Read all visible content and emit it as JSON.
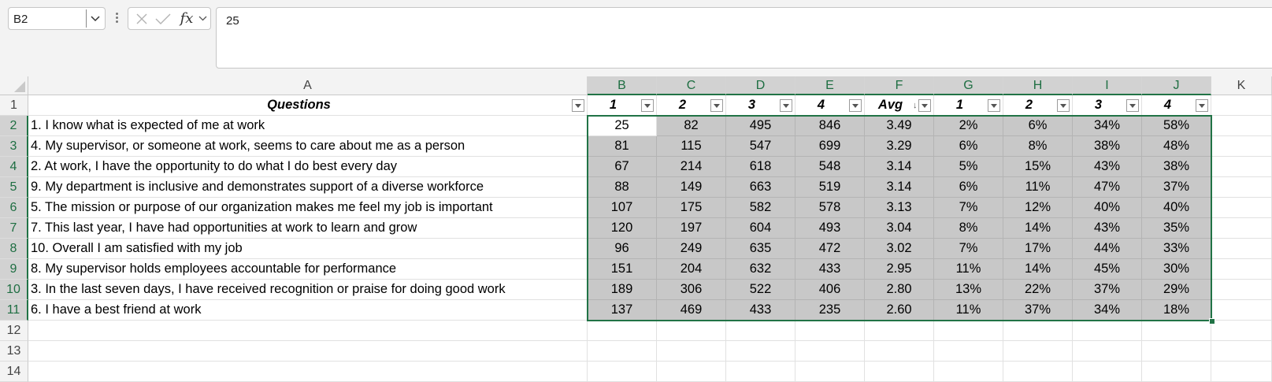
{
  "formula_bar": {
    "name_box_value": "B2",
    "formula_value": "25",
    "fx_label": "fx",
    "icons": {
      "name_box_dropdown": "chevron-down-icon",
      "cancel": "x-icon",
      "enter": "check-icon",
      "fx_dropdown": "chevron-down-icon"
    }
  },
  "sheet": {
    "columns": [
      "A",
      "B",
      "C",
      "D",
      "E",
      "F",
      "G",
      "H",
      "I",
      "J",
      "K"
    ],
    "selected_columns": [
      "B",
      "C",
      "D",
      "E",
      "F",
      "G",
      "H",
      "I",
      "J"
    ],
    "rows": [
      "1",
      "2",
      "3",
      "4",
      "5",
      "6",
      "7",
      "8",
      "9",
      "10",
      "11",
      "12",
      "13",
      "14"
    ],
    "selected_rows": [
      "2",
      "3",
      "4",
      "5",
      "6",
      "7",
      "8",
      "9",
      "10",
      "11"
    ],
    "header_row": [
      "Questions",
      "1",
      "2",
      "3",
      "4",
      "Avg",
      "1",
      "2",
      "3",
      "4"
    ],
    "active_cell": "B2",
    "selection_range": "B2:J11",
    "data": [
      [
        "1. I know what is expected of me at work",
        "25",
        "82",
        "495",
        "846",
        "3.49",
        "2%",
        "6%",
        "34%",
        "58%"
      ],
      [
        "4. My supervisor, or someone at work, seems to care about me as a person",
        "81",
        "115",
        "547",
        "699",
        "3.29",
        "6%",
        "8%",
        "38%",
        "48%"
      ],
      [
        "2. At work, I have the opportunity to do what I do best every day",
        "67",
        "214",
        "618",
        "548",
        "3.14",
        "5%",
        "15%",
        "43%",
        "38%"
      ],
      [
        "9. My department is inclusive and demonstrates support of a diverse workforce",
        "88",
        "149",
        "663",
        "519",
        "3.14",
        "6%",
        "11%",
        "47%",
        "37%"
      ],
      [
        "5. The mission or purpose of our organization makes me feel my job is important",
        "107",
        "175",
        "582",
        "578",
        "3.13",
        "7%",
        "12%",
        "40%",
        "40%"
      ],
      [
        "7. This last year, I have had opportunities at work to learn and grow",
        "120",
        "197",
        "604",
        "493",
        "3.04",
        "8%",
        "14%",
        "43%",
        "35%"
      ],
      [
        "10. Overall I am satisfied with my job",
        "96",
        "249",
        "635",
        "472",
        "3.02",
        "7%",
        "17%",
        "44%",
        "33%"
      ],
      [
        "8. My supervisor holds employees accountable for performance",
        "151",
        "204",
        "632",
        "433",
        "2.95",
        "11%",
        "14%",
        "45%",
        "30%"
      ],
      [
        "3. In the last seven days, I have received recognition or praise for doing good work",
        "189",
        "306",
        "522",
        "406",
        "2.80",
        "13%",
        "22%",
        "37%",
        "29%"
      ],
      [
        "6. I have a best friend at work",
        "137",
        "469",
        "433",
        "235",
        "2.60",
        "11%",
        "37%",
        "34%",
        "18%"
      ]
    ],
    "colors": {
      "selection_border": "#217346",
      "selection_fill": "#c8c8c8",
      "header_bg": "#f3f3f3"
    }
  }
}
